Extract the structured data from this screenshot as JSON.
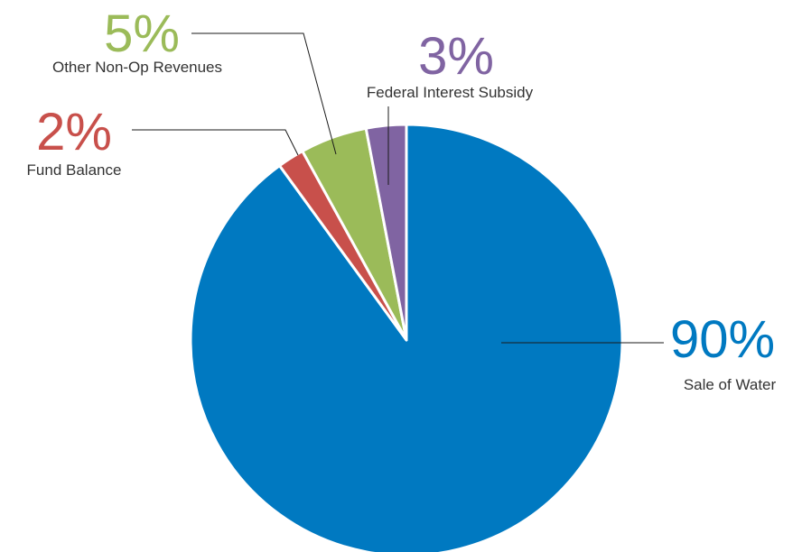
{
  "chart_data": {
    "type": "pie",
    "title": "",
    "start": "12 o'clock",
    "direction": "clockwise",
    "slices": [
      {
        "label": "Sale of Water",
        "percent_text": "90%",
        "value": 90,
        "color": "#0079c1"
      },
      {
        "label": "Fund Balance",
        "percent_text": "2%",
        "value": 2,
        "color": "#c8504b"
      },
      {
        "label": "Other Non-Op Revenues",
        "percent_text": "5%",
        "value": 5,
        "color": "#9bbb59"
      },
      {
        "label": "Federal Interest Subsidy",
        "percent_text": "3%",
        "value": 3,
        "color": "#8064a2"
      }
    ],
    "legend": "none",
    "grid": false
  }
}
